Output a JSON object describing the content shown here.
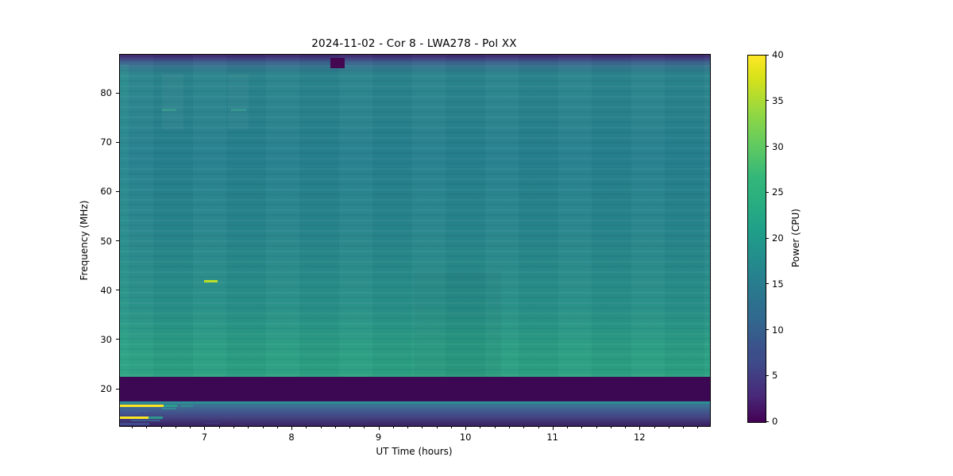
{
  "figure": {
    "title": "2024-11-02 - Cor 8 - LWA278 - Pol XX"
  },
  "chart_data": {
    "type": "heatmap",
    "subtype": "radio-dynamic-spectrum",
    "title": "2024-11-02 - Cor 8 - LWA278 - Pol XX",
    "xlabel": "UT Time (hours)",
    "ylabel": "Frequency (MHz)",
    "colormap": "viridis",
    "grid": false,
    "legend": "none",
    "x_axis": {
      "range": [
        6.02,
        12.8
      ],
      "major_ticks": [
        7,
        8,
        9,
        10,
        11,
        12
      ],
      "minor_tick_interval_hours": 0.1667
    },
    "y_axis": {
      "range": [
        12.6,
        87.9
      ],
      "major_ticks": [
        20,
        30,
        40,
        50,
        60,
        70,
        80
      ]
    },
    "colorbar": {
      "label": "Power (CPU)",
      "range": [
        0,
        40
      ],
      "ticks": [
        0,
        5,
        10,
        15,
        20,
        25,
        30,
        35,
        40
      ]
    },
    "regions": [
      {
        "freq_range": [
          86.2,
          87.9
        ],
        "time_range": [
          6.02,
          12.8
        ],
        "power": "0-5",
        "note": "dark purple band along top edge, quick gradient into body"
      },
      {
        "freq_range": [
          22.6,
          86.2
        ],
        "time_range": [
          6.02,
          12.8
        ],
        "power": "17-23",
        "note": "smooth teal body with faint horizontal banding; slightly greener below 30 MHz and at left edge"
      },
      {
        "freq_range": [
          18.1,
          22.6
        ],
        "time_range": [
          6.02,
          12.8
        ],
        "power": "0-2",
        "note": "uniform very dark purple suppressed band"
      },
      {
        "freq_range": [
          17.2,
          17.9
        ],
        "time_range": [
          6.02,
          12.8
        ],
        "power": "~18",
        "note": "thin teal line across entire time range"
      },
      {
        "freq_range": [
          12.6,
          17.2
        ],
        "time_range": [
          6.02,
          12.8
        ],
        "power": "4-14",
        "note": "blue-to-purple gradient zone with strong RFI structure before ~7 UT"
      }
    ],
    "features": [
      {
        "name": "dark-patch-85-87MHz",
        "t0": 8.44,
        "t1": 8.6,
        "f0": 85.2,
        "f1": 87.3,
        "power": 0,
        "color": "#440752",
        "opacity": 1
      },
      {
        "name": "narrowband-burst-42MHz",
        "t0": 6.99,
        "t1": 7.14,
        "f0": 41.75,
        "f1": 42.2,
        "power": 35,
        "color": "#b8de29",
        "opacity": 1
      },
      {
        "name": "faint-dash-77MHz-a",
        "t0": 6.5,
        "t1": 6.67,
        "f0": 76.5,
        "f1": 76.95,
        "power": 24,
        "color": "#3aa68c",
        "opacity": 0.55
      },
      {
        "name": "faint-dash-77MHz-b",
        "t0": 7.3,
        "t1": 7.47,
        "f0": 76.5,
        "f1": 76.95,
        "power": 24,
        "color": "#3aa68c",
        "opacity": 0.5
      },
      {
        "name": "light-column-a",
        "t0": 6.5,
        "t1": 6.75,
        "f0": 72.8,
        "f1": 84.0,
        "color": "#ffffff",
        "opacity": 0.04
      },
      {
        "name": "light-column-b",
        "t0": 7.26,
        "t1": 7.5,
        "f0": 72.8,
        "f1": 84.0,
        "color": "#ffffff",
        "opacity": 0.035
      },
      {
        "name": "suppressed-band-18-22.5MHz",
        "t0": 6.02,
        "t1": 12.8,
        "f0": 17.7,
        "f1": 22.6,
        "power": 0,
        "color": "#3d0853",
        "opacity": 1
      },
      {
        "name": "teal-line-17.5MHz",
        "t0": 6.02,
        "t1": 12.8,
        "f0": 17.15,
        "f1": 17.6,
        "power": 18,
        "color": "#2e9097",
        "opacity": 1
      },
      {
        "name": "rfi-line-16.7MHz",
        "t0": 6.02,
        "t1": 6.52,
        "f0": 16.5,
        "f1": 16.9,
        "power": 40,
        "color": "#fde725",
        "opacity": 1
      },
      {
        "name": "rfi-16.7MHz-teal-tail",
        "t0": 6.52,
        "t1": 6.68,
        "f0": 16.5,
        "f1": 16.9,
        "power": 22,
        "color": "#2aa18c",
        "opacity": 0.95
      },
      {
        "name": "rfi-16.7MHz-teal-tail2",
        "t0": 6.72,
        "t1": 6.86,
        "f0": 16.5,
        "f1": 16.9,
        "power": 20,
        "color": "#2aa18c",
        "opacity": 0.45
      },
      {
        "name": "teal-dash-16.1MHz",
        "t0": 6.5,
        "t1": 6.67,
        "f0": 15.9,
        "f1": 16.25,
        "power": 18,
        "color": "#30949a",
        "opacity": 0.8
      },
      {
        "name": "blue-streak-15.6MHz",
        "t0": 6.02,
        "t1": 6.37,
        "f0": 15.45,
        "f1": 15.8,
        "power": 12,
        "color": "#46629e",
        "opacity": 0.7
      },
      {
        "name": "blue-streak-15.2MHz",
        "t0": 6.02,
        "t1": 6.25,
        "f0": 15.0,
        "f1": 15.35,
        "power": 10,
        "color": "#46629e",
        "opacity": 0.4
      },
      {
        "name": "rfi-line-14.3MHz",
        "t0": 6.02,
        "t1": 6.35,
        "f0": 14.1,
        "f1": 14.5,
        "power": 40,
        "color": "#fde725",
        "opacity": 1
      },
      {
        "name": "rfi-14.3MHz-teal-tail",
        "t0": 6.35,
        "t1": 6.51,
        "f0": 14.1,
        "f1": 14.5,
        "power": 22,
        "color": "#2aa18c",
        "opacity": 0.9
      },
      {
        "name": "teal-dash-13.8MHz",
        "t0": 6.15,
        "t1": 6.49,
        "f0": 13.6,
        "f1": 13.95,
        "power": 15,
        "color": "#357e9c",
        "opacity": 0.6
      },
      {
        "name": "blue-row-13MHz",
        "t0": 6.02,
        "t1": 6.36,
        "f0": 12.8,
        "f1": 13.3,
        "power": 11,
        "color": "#40589c",
        "opacity": 0.75
      },
      {
        "name": "blue-dash-13MHz",
        "t0": 6.99,
        "t1": 7.18,
        "f0": 13.0,
        "f1": 13.3,
        "power": 9,
        "color": "#444e90",
        "opacity": 0.5
      },
      {
        "name": "faint-blue-dash-13MHz",
        "t0": 7.25,
        "t1": 8.9,
        "f0": 12.9,
        "f1": 13.15,
        "power": 7,
        "color": "#3e3f82",
        "opacity": 0.35
      },
      {
        "name": "green-left-edge",
        "t0": 6.02,
        "t1": 6.12,
        "f0": 22.6,
        "f1": 86.0,
        "color": "#3ecf9a",
        "opacity": 0.1
      },
      {
        "name": "subtle-dark-column",
        "t0": 9.4,
        "t1": 10.4,
        "f0": 22.6,
        "f1": 44.0,
        "color": "#001e3c",
        "opacity": 0.04
      }
    ]
  }
}
